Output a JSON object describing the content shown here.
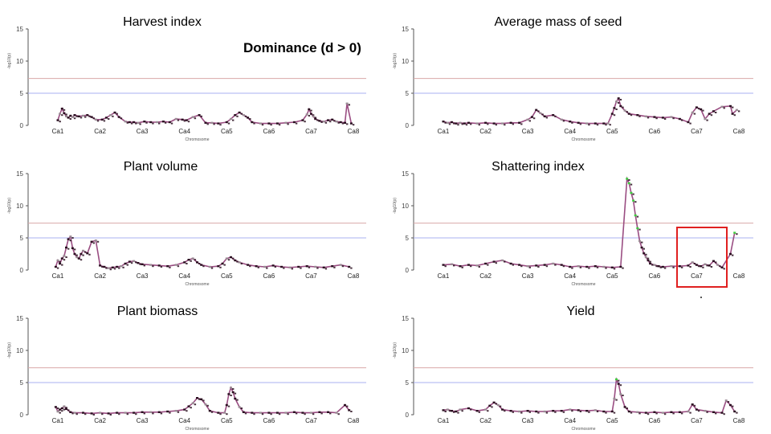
{
  "header": {
    "label": "Dominance (d > 0)"
  },
  "colors": {
    "upper_threshold": "#d9a8a8",
    "lower_threshold": "#aab0f2",
    "marker_dark": "#2a0f20",
    "marker_light": "#9a8c94",
    "marker_green": "#3fce3f",
    "fit_line": "#9a4d82",
    "highlight_box": "#e02020"
  },
  "chart_data": [
    {
      "type": "scatter",
      "title": "Harvest index",
      "xlabel": "Chromosome",
      "ylabel": "-log10(p)",
      "ylim": [
        0,
        15
      ],
      "yticks": [
        0,
        5,
        10,
        15
      ],
      "categories": [
        "Ca1",
        "Ca2",
        "Ca3",
        "Ca4",
        "Ca5",
        "Ca6",
        "Ca7",
        "Ca8"
      ],
      "thresholds": [
        7.3,
        5
      ],
      "series": [
        {
          "x": [
            1,
            1.05,
            1.1,
            1.15,
            1.2,
            1.25,
            1.3,
            1.35,
            1.4,
            1.5,
            1.6,
            1.7,
            1.8,
            1.9,
            2.05,
            2.15,
            2.25,
            2.35,
            2.45,
            2.6,
            2.7,
            2.8,
            2.9,
            3.05,
            3.2,
            3.35,
            3.5,
            3.65,
            3.8,
            3.95,
            4.05,
            4.2,
            4.35,
            4.5,
            4.65,
            4.8,
            5.0,
            5.1,
            5.2,
            5.3,
            5.4,
            5.5,
            5.6,
            5.8,
            6.0,
            6.2,
            6.4,
            6.6,
            6.8,
            6.9,
            6.95,
            7.0,
            7.05,
            7.1,
            7.2,
            7.3,
            7.4,
            7.5,
            7.6,
            7.7,
            7.8,
            7.85,
            7.95
          ],
          "y": [
            0.8,
            1.8,
            2.6,
            1.9,
            1.4,
            1.2,
            1.5,
            1.3,
            1.6,
            1.4,
            1.5,
            1.6,
            1.3,
            0.9,
            0.9,
            1.2,
            1.6,
            2.0,
            1.3,
            0.6,
            0.5,
            0.5,
            0.4,
            0.6,
            0.5,
            0.5,
            0.6,
            0.5,
            1.0,
            0.9,
            0.8,
            1.3,
            1.6,
            0.4,
            0.4,
            0.3,
            0.5,
            1.0,
            1.6,
            2.0,
            1.6,
            1.2,
            0.5,
            0.3,
            0.3,
            0.3,
            0.4,
            0.5,
            0.8,
            1.7,
            2.5,
            1.8,
            1.4,
            1.0,
            0.7,
            0.6,
            0.8,
            0.9,
            0.6,
            0.5,
            0.4,
            3.4,
            0.3
          ]
        }
      ]
    },
    {
      "type": "scatter",
      "title": "Average mass of seed",
      "xlabel": "Chromosome",
      "ylabel": "-log10(p)",
      "ylim": [
        0,
        15
      ],
      "yticks": [
        0,
        5,
        10,
        15
      ],
      "categories": [
        "Ca1",
        "Ca2",
        "Ca3",
        "Ca4",
        "Ca5",
        "Ca6",
        "Ca7",
        "Ca8"
      ],
      "thresholds": [
        7.3,
        5
      ],
      "series": [
        {
          "x": [
            1,
            1.1,
            1.2,
            1.3,
            1.4,
            1.5,
            1.6,
            1.8,
            2.0,
            2.2,
            2.4,
            2.6,
            2.8,
            3.0,
            3.1,
            3.2,
            3.3,
            3.4,
            3.6,
            3.8,
            4.0,
            4.2,
            4.4,
            4.6,
            4.8,
            4.9,
            5.0,
            5.05,
            5.1,
            5.15,
            5.2,
            5.3,
            5.4,
            5.6,
            5.8,
            6.0,
            6.2,
            6.4,
            6.6,
            6.8,
            6.9,
            7.0,
            7.1,
            7.2,
            7.3,
            7.4,
            7.6,
            7.8,
            7.85,
            7.95
          ],
          "y": [
            0.6,
            0.4,
            0.5,
            0.3,
            0.4,
            0.3,
            0.4,
            0.3,
            0.4,
            0.3,
            0.3,
            0.4,
            0.4,
            0.9,
            1.3,
            2.4,
            1.9,
            1.4,
            1.6,
            0.9,
            0.6,
            0.4,
            0.3,
            0.3,
            0.3,
            0.3,
            1.8,
            2.7,
            3.7,
            4.2,
            3.0,
            2.3,
            1.8,
            1.6,
            1.4,
            1.3,
            1.2,
            1.3,
            1.0,
            0.5,
            2.0,
            2.8,
            2.5,
            1.0,
            1.8,
            2.2,
            2.9,
            3.0,
            1.8,
            2.4
          ]
        }
      ]
    },
    {
      "type": "scatter",
      "title": "Plant volume",
      "xlabel": "Chromosome",
      "ylabel": "-log10(p)",
      "ylim": [
        0,
        15
      ],
      "yticks": [
        0,
        5,
        10,
        15
      ],
      "categories": [
        "Ca1",
        "Ca2",
        "Ca3",
        "Ca4",
        "Ca5",
        "Ca6",
        "Ca7",
        "Ca8"
      ],
      "thresholds": [
        7.3,
        5
      ],
      "series": [
        {
          "x": [
            0.95,
            1.0,
            1.05,
            1.1,
            1.15,
            1.2,
            1.25,
            1.3,
            1.35,
            1.4,
            1.45,
            1.5,
            1.55,
            1.6,
            1.7,
            1.8,
            1.9,
            2.0,
            2.1,
            2.2,
            2.3,
            2.4,
            2.5,
            2.6,
            2.7,
            2.8,
            2.9,
            3.0,
            3.2,
            3.4,
            3.6,
            3.8,
            4.0,
            4.1,
            4.2,
            4.3,
            4.4,
            4.6,
            4.8,
            4.9,
            5.0,
            5.1,
            5.2,
            5.3,
            5.5,
            5.7,
            5.9,
            6.1,
            6.3,
            6.5,
            6.7,
            6.9,
            7.1,
            7.3,
            7.5,
            7.7,
            7.9
          ],
          "y": [
            0.5,
            1.5,
            1.0,
            1.8,
            2.2,
            3.5,
            4.8,
            5.2,
            3.4,
            2.5,
            2.0,
            1.8,
            2.5,
            3.0,
            2.6,
            4.4,
            4.6,
            0.7,
            0.5,
            0.3,
            0.4,
            0.5,
            0.6,
            1.0,
            1.3,
            1.4,
            1.1,
            0.9,
            0.8,
            0.7,
            0.6,
            0.8,
            1.2,
            1.6,
            1.8,
            1.2,
            0.8,
            0.5,
            0.6,
            1.0,
            1.8,
            2.0,
            1.5,
            1.2,
            0.8,
            0.6,
            0.5,
            0.7,
            0.5,
            0.4,
            0.5,
            0.6,
            0.5,
            0.4,
            0.6,
            0.8,
            0.5
          ]
        }
      ]
    },
    {
      "type": "scatter",
      "title": "Shattering index",
      "xlabel": "Chromosome",
      "ylabel": "-log10(p)",
      "ylim": [
        0,
        15
      ],
      "yticks": [
        0,
        5,
        10,
        15
      ],
      "categories": [
        "Ca1",
        "Ca2",
        "Ca3",
        "Ca4",
        "Ca5",
        "Ca6",
        "Ca7",
        "Ca8"
      ],
      "thresholds": [
        7.3,
        5
      ],
      "series": [
        {
          "x": [
            1,
            1.2,
            1.4,
            1.6,
            1.8,
            2.0,
            2.2,
            2.4,
            2.6,
            2.8,
            3.0,
            3.2,
            3.4,
            3.6,
            3.8,
            4.0,
            4.2,
            4.4,
            4.6,
            4.8,
            5.0,
            5.2,
            5.35,
            5.4,
            5.45,
            5.5,
            5.55,
            5.6,
            5.65,
            5.7,
            5.75,
            5.8,
            5.85,
            5.9,
            6.0,
            6.1,
            6.2,
            6.4,
            6.6,
            6.8,
            6.9,
            7.0,
            7.1,
            7.2,
            7.3,
            7.4,
            7.5,
            7.6,
            7.8,
            7.9
          ],
          "y": [
            0.8,
            0.9,
            0.6,
            0.8,
            0.7,
            1.0,
            1.3,
            1.5,
            1.0,
            0.8,
            0.6,
            0.7,
            0.8,
            1.0,
            0.8,
            0.5,
            0.6,
            0.5,
            0.6,
            0.5,
            0.4,
            0.5,
            14.2,
            13.5,
            12.0,
            10.8,
            8.5,
            6.5,
            4.5,
            3.5,
            2.6,
            2.0,
            1.5,
            1.0,
            0.8,
            0.6,
            0.5,
            0.6,
            0.6,
            0.7,
            1.2,
            0.8,
            0.6,
            0.9,
            0.7,
            1.4,
            0.8,
            0.4,
            2.5,
            5.8
          ]
        }
      ]
    },
    {
      "type": "scatter",
      "title": "Plant biomass",
      "xlabel": "Chromosome",
      "ylabel": "-log10(p)",
      "ylim": [
        0,
        15
      ],
      "yticks": [
        0,
        5,
        10,
        15
      ],
      "categories": [
        "Ca1",
        "Ca2",
        "Ca3",
        "Ca4",
        "Ca5",
        "Ca6",
        "Ca7",
        "Ca8"
      ],
      "thresholds": [
        7.3,
        5
      ],
      "series": [
        {
          "x": [
            0.95,
            1.0,
            1.05,
            1.1,
            1.15,
            1.2,
            1.3,
            1.4,
            1.6,
            1.8,
            2.0,
            2.2,
            2.4,
            2.6,
            2.8,
            3.0,
            3.2,
            3.4,
            3.6,
            3.8,
            4.0,
            4.1,
            4.2,
            4.3,
            4.4,
            4.5,
            4.6,
            4.8,
            4.95,
            5.0,
            5.05,
            5.1,
            5.15,
            5.2,
            5.3,
            5.4,
            5.6,
            5.8,
            6.0,
            6.2,
            6.4,
            6.6,
            6.8,
            7.0,
            7.2,
            7.4,
            7.6,
            7.8,
            7.9
          ],
          "y": [
            1.2,
            0.5,
            0.8,
            1.0,
            1.3,
            0.9,
            0.4,
            0.3,
            0.3,
            0.2,
            0.3,
            0.2,
            0.3,
            0.3,
            0.3,
            0.4,
            0.4,
            0.4,
            0.5,
            0.6,
            0.8,
            1.3,
            1.8,
            2.6,
            2.4,
            1.6,
            0.6,
            0.3,
            0.3,
            1.5,
            3.2,
            4.2,
            3.5,
            2.5,
            1.2,
            0.4,
            0.3,
            0.3,
            0.3,
            0.3,
            0.3,
            0.4,
            0.3,
            0.3,
            0.4,
            0.4,
            0.3,
            1.5,
            0.7
          ]
        }
      ]
    },
    {
      "type": "scatter",
      "title": "Yield",
      "xlabel": "Chromosome",
      "ylabel": "-log10(p)",
      "ylim": [
        0,
        15
      ],
      "yticks": [
        0,
        5,
        10,
        15
      ],
      "categories": [
        "Ca1",
        "Ca2",
        "Ca3",
        "Ca4",
        "Ca5",
        "Ca6",
        "Ca7",
        "Ca8"
      ],
      "thresholds": [
        7.3,
        5
      ],
      "series": [
        {
          "x": [
            1,
            1.1,
            1.2,
            1.3,
            1.4,
            1.6,
            1.8,
            2.0,
            2.1,
            2.2,
            2.3,
            2.4,
            2.6,
            2.8,
            3.0,
            3.2,
            3.4,
            3.6,
            3.8,
            4.0,
            4.2,
            4.4,
            4.6,
            4.8,
            5.0,
            5.05,
            5.1,
            5.15,
            5.2,
            5.3,
            5.4,
            5.6,
            5.8,
            6.0,
            6.2,
            6.4,
            6.6,
            6.8,
            6.9,
            7.0,
            7.2,
            7.4,
            7.6,
            7.7,
            7.8,
            7.9
          ],
          "y": [
            0.7,
            0.8,
            0.6,
            0.5,
            0.8,
            1.0,
            0.6,
            0.8,
            1.4,
            1.9,
            1.5,
            0.8,
            0.6,
            0.5,
            0.6,
            0.5,
            0.5,
            0.6,
            0.6,
            0.8,
            0.7,
            0.6,
            0.7,
            0.5,
            0.5,
            2.5,
            5.5,
            4.8,
            3.2,
            1.2,
            0.5,
            0.4,
            0.3,
            0.4,
            0.3,
            0.4,
            0.4,
            0.5,
            1.6,
            0.8,
            0.6,
            0.4,
            0.3,
            2.2,
            1.5,
            0.5
          ]
        }
      ]
    }
  ]
}
